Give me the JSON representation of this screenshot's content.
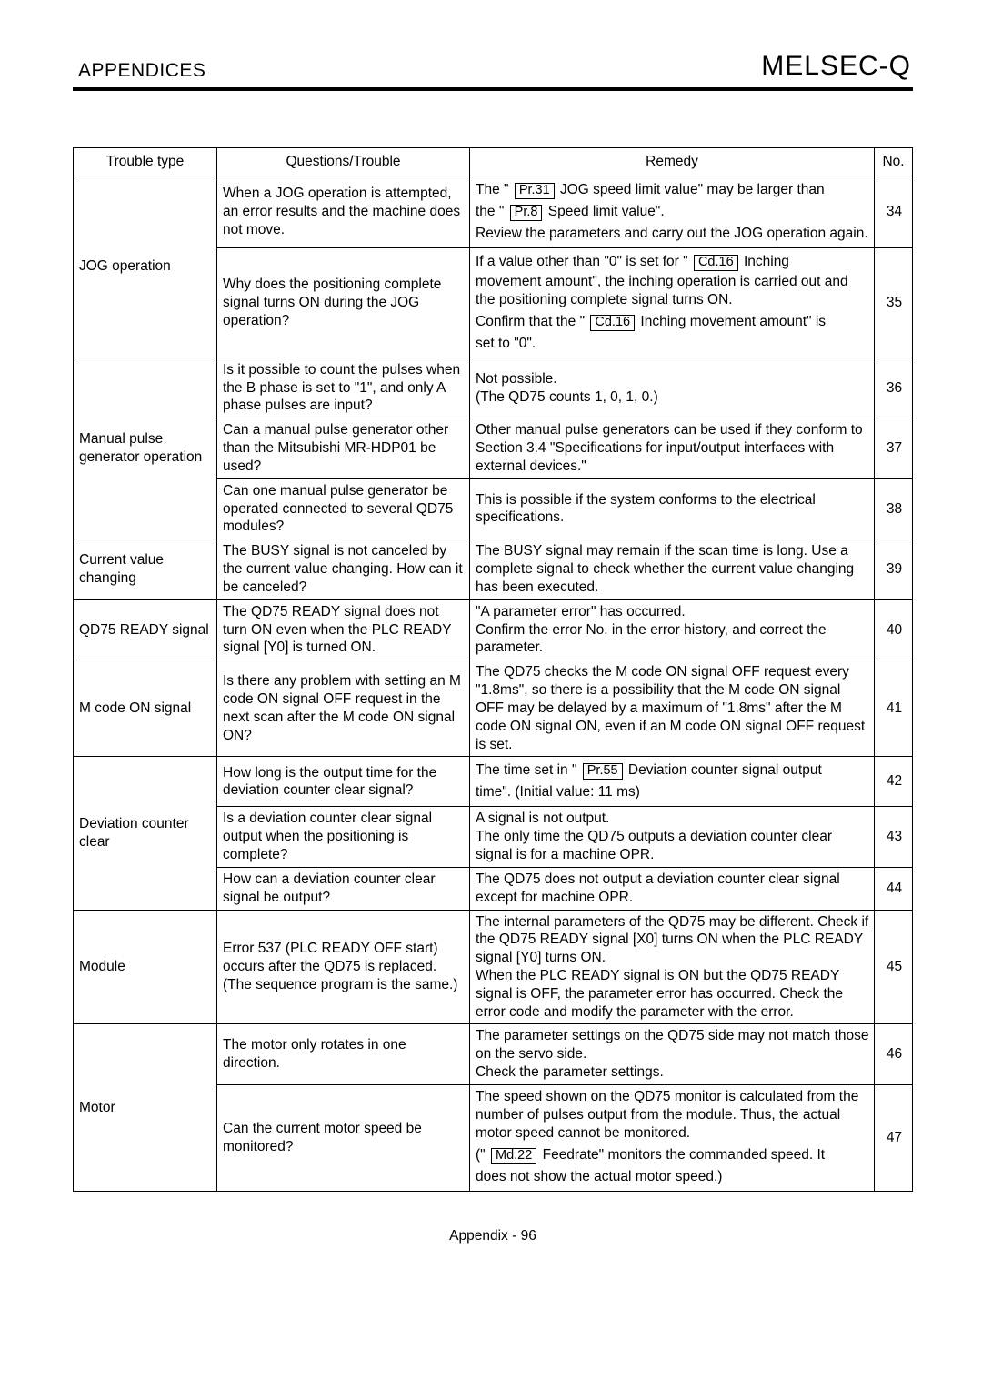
{
  "header": {
    "left": "APPENDICES",
    "right": "MELSEC-Q"
  },
  "columns": {
    "type": "Trouble type",
    "question": "Questions/Trouble",
    "remedy": "Remedy",
    "no": "No."
  },
  "rows": {
    "r34": {
      "type": "JOG operation",
      "q": "When a JOG operation is attempted, an error results and the machine does not move.",
      "remedy_pre1": "The \" ",
      "p1": "Pr.31",
      "remedy_mid1": " JOG speed limit value\" may be larger than",
      "remedy_pre2": "the \" ",
      "p2": "Pr.8",
      "remedy_mid2": " Speed limit value\".",
      "remedy_rest": "Review the parameters and carry out the JOG operation again.",
      "no": "34"
    },
    "r35": {
      "q": "Why does the positioning complete signal turns ON during the JOG operation?",
      "remedy_pre1": "If a value other than \"0\" is set for \" ",
      "p1": "Cd.16",
      "remedy_mid1": " Inching",
      "remedy_line2": "movement amount\", the inching operation is carried out and the positioning complete signal turns ON.",
      "remedy_pre2": "Confirm that the \" ",
      "p2": "Cd.16",
      "remedy_mid2": " Inching movement amount\" is",
      "remedy_rest": "set to \"0\".",
      "no": "35"
    },
    "r36": {
      "type": "Manual pulse generator operation",
      "q": "Is it possible to count the pulses when the B phase is set to \"1\", and only A phase pulses are input?",
      "remedy": "Not possible.\n(The QD75 counts 1, 0, 1, 0.)",
      "no": "36"
    },
    "r37": {
      "q": "Can a manual pulse generator other than the Mitsubishi MR-HDP01 be used?",
      "remedy": "Other manual pulse generators can be used if they conform to Section 3.4 \"Specifications for input/output interfaces with external devices.\"",
      "no": "37"
    },
    "r38": {
      "q": "Can one manual pulse generator be operated connected to several QD75 modules?",
      "remedy": "This is possible if the system conforms to the electrical specifications.",
      "no": "38"
    },
    "r39": {
      "type": "Current value changing",
      "q": "The BUSY signal is not canceled by the current value changing. How can it be canceled?",
      "remedy": "The BUSY signal may remain if the scan time is long. Use a complete signal to check whether the current value changing has been executed.",
      "no": "39"
    },
    "r40": {
      "type": "QD75 READY signal",
      "q": "The QD75 READY signal does not turn ON even when the PLC READY signal [Y0] is turned ON.",
      "remedy": "\"A parameter error\" has occurred.\nConfirm the error No. in the error history, and correct the parameter.",
      "no": "40"
    },
    "r41": {
      "type": "M code ON signal",
      "q": "Is there any problem with setting an M code ON signal OFF request in the next scan after the M code ON signal ON?",
      "remedy": "The QD75 checks the M code ON signal OFF request every \"1.8ms\", so there is a possibility that the M code ON signal OFF may be delayed by a maximum of \"1.8ms\" after the M code ON signal ON, even if an M code ON signal OFF request is set.",
      "no": "41"
    },
    "r42": {
      "type": "Deviation counter clear",
      "q": "How long is the output time for the deviation counter clear signal?",
      "remedy_pre": "The time set in \" ",
      "p": "Pr.55",
      "remedy_mid": " Deviation counter signal output",
      "remedy_rest": "time\". (Initial value: 11 ms)",
      "no": "42"
    },
    "r43": {
      "q": "Is a deviation counter clear signal output when the positioning is complete?",
      "remedy": "A signal is not output.\nThe only time the QD75 outputs a deviation counter clear signal is for a machine OPR.",
      "no": "43"
    },
    "r44": {
      "q": "How can a deviation counter clear signal be output?",
      "remedy": "The QD75 does not output a deviation counter clear signal except for machine OPR.",
      "no": "44"
    },
    "r45": {
      "type": "Module",
      "q": "Error 537 (PLC READY OFF start) occurs after the QD75 is replaced. (The sequence program is the same.)",
      "remedy": "The internal parameters of the QD75 may be different. Check if the QD75 READY signal [X0] turns ON when the PLC READY signal [Y0] turns ON.\nWhen the PLC READY signal is ON but the QD75 READY signal is OFF, the parameter error has occurred. Check the error code and modify the parameter with the error.",
      "no": "45"
    },
    "r46": {
      "type": "Motor",
      "q": "The motor only rotates in one direction.",
      "remedy": "The parameter settings on the QD75 side may not match those on the servo side.\nCheck the parameter settings.",
      "no": "46"
    },
    "r47": {
      "q": "Can the current motor speed be monitored?",
      "remedy_top": "The speed shown on the QD75 monitor is calculated from the number of pulses output from the module. Thus, the actual motor speed cannot be monitored.",
      "remedy_pre": "(\" ",
      "p": "Md.22",
      "remedy_mid": " Feedrate\" monitors the commanded speed. It",
      "remedy_rest": "does not show the actual motor speed.)",
      "no": "47"
    }
  },
  "footer": "Appendix - 96"
}
